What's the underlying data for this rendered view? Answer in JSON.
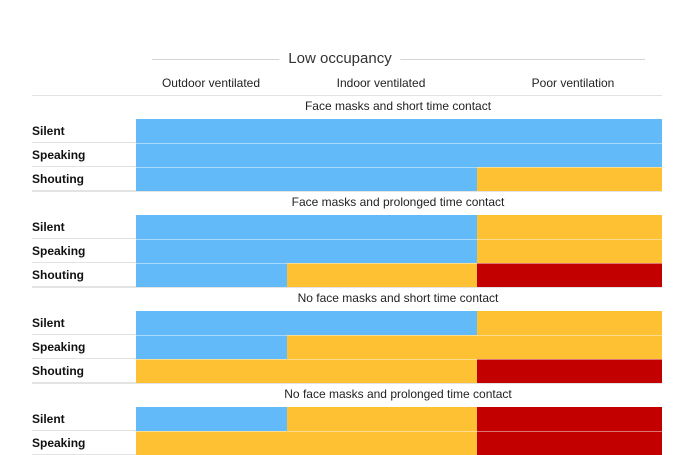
{
  "colors": {
    "low": "#62baf8",
    "medium": "#fdc133",
    "high": "#c30000"
  },
  "chart_data": {
    "type": "heatmap",
    "title": "",
    "subtitle": "",
    "header": "Low occupancy",
    "columns": [
      "Outdoor ventilated",
      "Indoor ventilated",
      "Poor ventilation"
    ],
    "sections": [
      {
        "title": "Face masks and short time contact",
        "rows": [
          {
            "label": "Silent",
            "risk": [
              "low",
              "low",
              "low"
            ]
          },
          {
            "label": "Speaking",
            "risk": [
              "low",
              "low",
              "low"
            ]
          },
          {
            "label": "Shouting",
            "risk": [
              "low",
              "low",
              "medium"
            ]
          }
        ]
      },
      {
        "title": "Face masks and prolonged time contact",
        "rows": [
          {
            "label": "Silent",
            "risk": [
              "low",
              "low",
              "medium"
            ]
          },
          {
            "label": "Speaking",
            "risk": [
              "low",
              "low",
              "medium"
            ]
          },
          {
            "label": "Shouting",
            "risk": [
              "low",
              "medium",
              "high"
            ]
          }
        ]
      },
      {
        "title": "No face masks and short time contact",
        "rows": [
          {
            "label": "Silent",
            "risk": [
              "low",
              "low",
              "medium"
            ]
          },
          {
            "label": "Speaking",
            "risk": [
              "low",
              "medium",
              "medium"
            ]
          },
          {
            "label": "Shouting",
            "risk": [
              "medium",
              "medium",
              "high"
            ]
          }
        ]
      },
      {
        "title": "No face masks and prolonged time contact",
        "rows": [
          {
            "label": "Silent",
            "risk": [
              "low",
              "medium",
              "high"
            ]
          },
          {
            "label": "Speaking",
            "risk": [
              "medium",
              "medium",
              "high"
            ]
          }
        ]
      }
    ]
  }
}
